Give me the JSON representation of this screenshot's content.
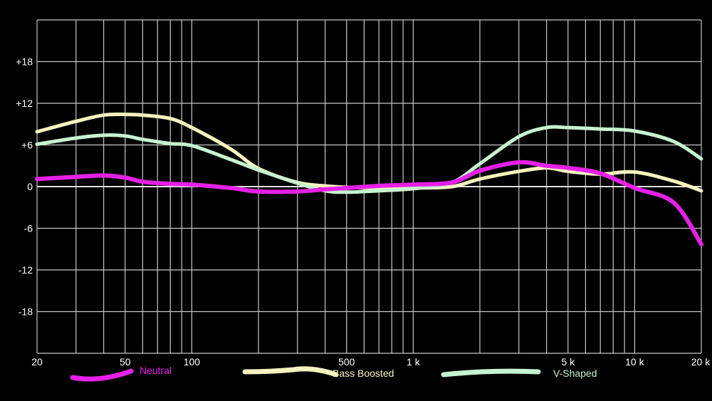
{
  "chart_data": {
    "type": "line",
    "title": "",
    "xlabel": "",
    "ylabel": "",
    "x_scale": "log",
    "xlim": [
      20,
      20000
    ],
    "ylim": [
      -24,
      24
    ],
    "grid": true,
    "legend_position": "bottom",
    "x_tick_labels": [
      {
        "value": 20,
        "label": "20"
      },
      {
        "value": 50,
        "label": "50"
      },
      {
        "value": 100,
        "label": "100"
      },
      {
        "value": 500,
        "label": "500"
      },
      {
        "value": 1000,
        "label": "1 k"
      },
      {
        "value": 5000,
        "label": "5 k"
      },
      {
        "value": 10000,
        "label": "10 k"
      },
      {
        "value": 20000,
        "label": "20 k"
      }
    ],
    "y_tick_labels": [
      {
        "value": 18,
        "label": "+18"
      },
      {
        "value": 12,
        "label": "+12"
      },
      {
        "value": 6,
        "label": "+6"
      },
      {
        "value": 0,
        "label": "0"
      },
      {
        "value": -6,
        "label": "-6"
      },
      {
        "value": -12,
        "label": "-12"
      },
      {
        "value": -18,
        "label": "-18"
      }
    ],
    "x": [
      20,
      30,
      40,
      50,
      60,
      80,
      100,
      150,
      200,
      300,
      400,
      500,
      700,
      1000,
      1500,
      2000,
      3000,
      4000,
      5000,
      7000,
      10000,
      15000,
      20000
    ],
    "series": [
      {
        "name": "Neutral",
        "color": "#e620e6",
        "values": [
          1.1,
          1.4,
          1.6,
          1.3,
          0.7,
          0.4,
          0.3,
          -0.2,
          -0.7,
          -0.7,
          -0.4,
          -0.2,
          0.1,
          0.3,
          0.6,
          2.3,
          3.5,
          3.0,
          2.7,
          1.9,
          -0.2,
          -2.3,
          -8.3
        ]
      },
      {
        "name": "Bass Boosted",
        "color": "#f7f3c0",
        "values": [
          7.9,
          9.4,
          10.3,
          10.4,
          10.3,
          9.8,
          8.5,
          5.4,
          2.6,
          0.6,
          0.1,
          -0.1,
          -0.2,
          -0.2,
          0.0,
          1.1,
          2.2,
          2.7,
          2.2,
          1.8,
          2.1,
          0.8,
          -0.6
        ]
      },
      {
        "name": "V-Shaped",
        "color": "#c6f3d0",
        "values": [
          6.1,
          7.0,
          7.4,
          7.3,
          6.8,
          6.2,
          5.9,
          3.9,
          2.4,
          0.5,
          -0.6,
          -0.8,
          -0.6,
          -0.3,
          0.6,
          3.3,
          7.2,
          8.5,
          8.5,
          8.3,
          8.0,
          6.5,
          4.0
        ]
      }
    ]
  }
}
